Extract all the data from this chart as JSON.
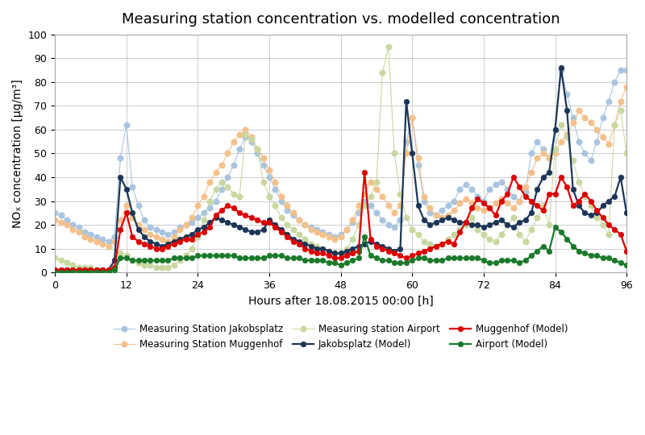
{
  "title": "Measuring station concentration vs. modelled concentration",
  "xlabel": "Hours after 18.08.2015 00:00 [h]",
  "ylabel": "NOₓ concentration [µg/m³]",
  "xlim": [
    0,
    96
  ],
  "ylim": [
    0,
    100
  ],
  "xticks": [
    0,
    12,
    24,
    36,
    48,
    60,
    72,
    84,
    96
  ],
  "yticks": [
    0,
    10,
    20,
    30,
    40,
    50,
    60,
    70,
    80,
    90,
    100
  ],
  "series": {
    "meas_jakobs": {
      "label": "Measuring Station Jakobsplatz",
      "color": "#a8c4e0",
      "marker": "o",
      "linewidth": 0.8,
      "markersize": 5.5,
      "zorder": 2,
      "x": [
        0,
        1,
        2,
        3,
        4,
        5,
        6,
        7,
        8,
        9,
        10,
        11,
        12,
        13,
        14,
        15,
        16,
        17,
        18,
        19,
        20,
        21,
        22,
        23,
        24,
        25,
        26,
        27,
        28,
        29,
        30,
        31,
        32,
        33,
        34,
        35,
        36,
        37,
        38,
        39,
        40,
        41,
        42,
        43,
        44,
        45,
        46,
        47,
        48,
        49,
        50,
        51,
        52,
        53,
        54,
        55,
        56,
        57,
        58,
        59,
        60,
        61,
        62,
        63,
        64,
        65,
        66,
        67,
        68,
        69,
        70,
        71,
        72,
        73,
        74,
        75,
        76,
        77,
        78,
        79,
        80,
        81,
        82,
        83,
        84,
        85,
        86,
        87,
        88,
        89,
        90,
        91,
        92,
        93,
        94,
        95,
        96
      ],
      "y": [
        25,
        24,
        22,
        20,
        19,
        17,
        16,
        15,
        14,
        13,
        15,
        48,
        62,
        36,
        28,
        22,
        19,
        18,
        17,
        16,
        17,
        19,
        20,
        21,
        23,
        25,
        27,
        30,
        35,
        40,
        45,
        52,
        57,
        55,
        50,
        45,
        40,
        35,
        30,
        26,
        24,
        22,
        20,
        19,
        18,
        17,
        16,
        15,
        16,
        18,
        21,
        25,
        30,
        28,
        25,
        22,
        20,
        19,
        22,
        55,
        65,
        45,
        30,
        25,
        24,
        26,
        28,
        30,
        35,
        37,
        35,
        32,
        30,
        35,
        37,
        38,
        35,
        32,
        30,
        34,
        50,
        55,
        52,
        48,
        60,
        85,
        75,
        65,
        55,
        50,
        47,
        55,
        65,
        72,
        80,
        85,
        85
      ]
    },
    "meas_muggenhof": {
      "label": "Measuring Station Muggenhof",
      "color": "#f4c08a",
      "marker": "o",
      "linewidth": 0.8,
      "markersize": 5.5,
      "zorder": 2,
      "x": [
        0,
        1,
        2,
        3,
        4,
        5,
        6,
        7,
        8,
        9,
        10,
        11,
        12,
        13,
        14,
        15,
        16,
        17,
        18,
        19,
        20,
        21,
        22,
        23,
        24,
        25,
        26,
        27,
        28,
        29,
        30,
        31,
        32,
        33,
        34,
        35,
        36,
        37,
        38,
        39,
        40,
        41,
        42,
        43,
        44,
        45,
        46,
        47,
        48,
        49,
        50,
        51,
        52,
        53,
        54,
        55,
        56,
        57,
        58,
        59,
        60,
        61,
        62,
        63,
        64,
        65,
        66,
        67,
        68,
        69,
        70,
        71,
        72,
        73,
        74,
        75,
        76,
        77,
        78,
        79,
        80,
        81,
        82,
        83,
        84,
        85,
        86,
        87,
        88,
        89,
        90,
        91,
        92,
        93,
        94,
        95,
        96
      ],
      "y": [
        22,
        21,
        20,
        18,
        17,
        15,
        14,
        13,
        12,
        11,
        13,
        22,
        28,
        23,
        20,
        18,
        16,
        15,
        14,
        13,
        15,
        18,
        20,
        23,
        28,
        32,
        38,
        42,
        45,
        50,
        55,
        58,
        60,
        57,
        52,
        48,
        43,
        38,
        32,
        28,
        25,
        22,
        20,
        18,
        17,
        16,
        15,
        14,
        15,
        18,
        22,
        28,
        33,
        38,
        35,
        32,
        28,
        25,
        28,
        50,
        65,
        48,
        32,
        27,
        24,
        23,
        24,
        26,
        29,
        31,
        29,
        27,
        26,
        27,
        29,
        31,
        29,
        27,
        30,
        36,
        42,
        48,
        50,
        48,
        50,
        55,
        58,
        63,
        68,
        65,
        63,
        60,
        57,
        54,
        62,
        72,
        78
      ]
    },
    "meas_airport": {
      "label": "Measuring station Airport",
      "color": "#c8d8a0",
      "marker": "o",
      "linewidth": 0.8,
      "markersize": 5.5,
      "zorder": 2,
      "x": [
        0,
        1,
        2,
        3,
        4,
        5,
        6,
        7,
        8,
        9,
        10,
        11,
        12,
        13,
        14,
        15,
        16,
        17,
        18,
        19,
        20,
        21,
        22,
        23,
        24,
        25,
        26,
        27,
        28,
        29,
        30,
        31,
        32,
        33,
        34,
        35,
        36,
        37,
        38,
        39,
        40,
        41,
        42,
        43,
        44,
        45,
        46,
        47,
        48,
        49,
        50,
        51,
        52,
        53,
        54,
        55,
        56,
        57,
        58,
        59,
        60,
        61,
        62,
        63,
        64,
        65,
        66,
        67,
        68,
        69,
        70,
        71,
        72,
        73,
        74,
        75,
        76,
        77,
        78,
        79,
        80,
        81,
        82,
        83,
        84,
        85,
        86,
        87,
        88,
        89,
        90,
        91,
        92,
        93,
        94,
        95,
        96
      ],
      "y": [
        6,
        5,
        4,
        3,
        2,
        2,
        2,
        1,
        1,
        1,
        2,
        8,
        7,
        5,
        4,
        3,
        3,
        2,
        2,
        2,
        3,
        5,
        7,
        10,
        15,
        22,
        30,
        35,
        38,
        36,
        33,
        32,
        58,
        56,
        52,
        38,
        32,
        28,
        23,
        20,
        18,
        16,
        14,
        12,
        11,
        10,
        9,
        8,
        8,
        10,
        14,
        20,
        28,
        32,
        38,
        84,
        95,
        50,
        33,
        23,
        18,
        16,
        13,
        12,
        11,
        12,
        14,
        16,
        18,
        20,
        23,
        18,
        16,
        14,
        13,
        16,
        20,
        23,
        16,
        13,
        18,
        23,
        28,
        20,
        52,
        62,
        57,
        47,
        38,
        32,
        28,
        23,
        20,
        16,
        62,
        68,
        50
      ]
    },
    "model_jakobs": {
      "label": "Jakobsplatz (Model)",
      "color": "#1c3557",
      "marker": "o",
      "linewidth": 1.6,
      "markersize": 5,
      "zorder": 3,
      "x": [
        0,
        1,
        2,
        3,
        4,
        5,
        6,
        7,
        8,
        9,
        10,
        11,
        12,
        13,
        14,
        15,
        16,
        17,
        18,
        19,
        20,
        21,
        22,
        23,
        24,
        25,
        26,
        27,
        28,
        29,
        30,
        31,
        32,
        33,
        34,
        35,
        36,
        37,
        38,
        39,
        40,
        41,
        42,
        43,
        44,
        45,
        46,
        47,
        48,
        49,
        50,
        51,
        52,
        53,
        54,
        55,
        56,
        57,
        58,
        59,
        60,
        61,
        62,
        63,
        64,
        65,
        66,
        67,
        68,
        69,
        70,
        71,
        72,
        73,
        74,
        75,
        76,
        77,
        78,
        79,
        80,
        81,
        82,
        83,
        84,
        85,
        86,
        87,
        88,
        89,
        90,
        91,
        92,
        93,
        94,
        95,
        96
      ],
      "y": [
        1,
        1,
        1,
        1,
        1,
        1,
        1,
        1,
        1,
        1,
        5,
        40,
        35,
        25,
        18,
        15,
        13,
        12,
        11,
        12,
        13,
        14,
        15,
        16,
        18,
        19,
        21,
        23,
        22,
        21,
        20,
        19,
        18,
        17,
        17,
        18,
        22,
        20,
        18,
        16,
        14,
        13,
        12,
        11,
        10,
        10,
        9,
        8,
        8,
        9,
        10,
        11,
        12,
        13,
        12,
        11,
        10,
        9,
        10,
        72,
        50,
        28,
        22,
        20,
        21,
        22,
        23,
        22,
        21,
        21,
        20,
        20,
        19,
        20,
        21,
        22,
        20,
        19,
        21,
        22,
        25,
        35,
        40,
        42,
        60,
        86,
        68,
        35,
        28,
        25,
        24,
        25,
        28,
        30,
        32,
        40,
        25
      ]
    },
    "model_muggenhof": {
      "label": "Muggenhof (Model)",
      "color": "#dd0000",
      "marker": "o",
      "linewidth": 1.6,
      "markersize": 5,
      "zorder": 3,
      "x": [
        0,
        1,
        2,
        3,
        4,
        5,
        6,
        7,
        8,
        9,
        10,
        11,
        12,
        13,
        14,
        15,
        16,
        17,
        18,
        19,
        20,
        21,
        22,
        23,
        24,
        25,
        26,
        27,
        28,
        29,
        30,
        31,
        32,
        33,
        34,
        35,
        36,
        37,
        38,
        39,
        40,
        41,
        42,
        43,
        44,
        45,
        46,
        47,
        48,
        49,
        50,
        51,
        52,
        53,
        54,
        55,
        56,
        57,
        58,
        59,
        60,
        61,
        62,
        63,
        64,
        65,
        66,
        67,
        68,
        69,
        70,
        71,
        72,
        73,
        74,
        75,
        76,
        77,
        78,
        79,
        80,
        81,
        82,
        83,
        84,
        85,
        86,
        87,
        88,
        89,
        90,
        91,
        92,
        93,
        94,
        95,
        96
      ],
      "y": [
        1,
        1,
        1,
        1,
        1,
        1,
        1,
        1,
        1,
        1,
        2,
        18,
        25,
        15,
        13,
        12,
        11,
        10,
        10,
        11,
        12,
        13,
        14,
        14,
        16,
        17,
        19,
        24,
        26,
        28,
        27,
        25,
        24,
        23,
        22,
        21,
        21,
        19,
        17,
        15,
        13,
        12,
        10,
        9,
        8,
        8,
        7,
        6,
        6,
        7,
        8,
        9,
        42,
        14,
        11,
        10,
        9,
        8,
        7,
        6,
        7,
        8,
        9,
        10,
        11,
        12,
        13,
        12,
        17,
        21,
        27,
        31,
        29,
        27,
        24,
        30,
        33,
        40,
        36,
        32,
        30,
        28,
        26,
        33,
        33,
        40,
        36,
        28,
        30,
        33,
        30,
        26,
        23,
        20,
        18,
        16,
        9
      ]
    },
    "model_airport": {
      "label": "Airport (Model)",
      "color": "#1a7a2a",
      "marker": "o",
      "linewidth": 1.6,
      "markersize": 5,
      "zorder": 3,
      "x": [
        0,
        1,
        2,
        3,
        4,
        5,
        6,
        7,
        8,
        9,
        10,
        11,
        12,
        13,
        14,
        15,
        16,
        17,
        18,
        19,
        20,
        21,
        22,
        23,
        24,
        25,
        26,
        27,
        28,
        29,
        30,
        31,
        32,
        33,
        34,
        35,
        36,
        37,
        38,
        39,
        40,
        41,
        42,
        43,
        44,
        45,
        46,
        47,
        48,
        49,
        50,
        51,
        52,
        53,
        54,
        55,
        56,
        57,
        58,
        59,
        60,
        61,
        62,
        63,
        64,
        65,
        66,
        67,
        68,
        69,
        70,
        71,
        72,
        73,
        74,
        75,
        76,
        77,
        78,
        79,
        80,
        81,
        82,
        83,
        84,
        85,
        86,
        87,
        88,
        89,
        90,
        91,
        92,
        93,
        94,
        95,
        96
      ],
      "y": [
        0,
        0,
        0,
        0,
        0,
        0,
        0,
        0,
        0,
        0,
        1,
        6,
        6,
        5,
        5,
        5,
        5,
        5,
        5,
        5,
        6,
        6,
        6,
        6,
        7,
        7,
        7,
        7,
        7,
        7,
        7,
        6,
        6,
        6,
        6,
        6,
        7,
        7,
        7,
        6,
        6,
        6,
        5,
        5,
        5,
        5,
        4,
        4,
        3,
        4,
        5,
        6,
        15,
        7,
        6,
        5,
        5,
        4,
        4,
        4,
        5,
        6,
        6,
        5,
        5,
        5,
        6,
        6,
        6,
        6,
        6,
        6,
        5,
        4,
        4,
        5,
        5,
        5,
        4,
        5,
        7,
        9,
        11,
        9,
        19,
        17,
        14,
        11,
        9,
        8,
        7,
        7,
        6,
        6,
        5,
        4,
        3
      ]
    }
  },
  "legend_order": [
    "meas_jakobs",
    "meas_muggenhof",
    "meas_airport",
    "model_jakobs",
    "model_muggenhof",
    "model_airport"
  ],
  "background_color": "#ffffff",
  "grid_color": "#cccccc",
  "title_fontsize": 13,
  "axis_fontsize": 10,
  "tick_fontsize": 9
}
